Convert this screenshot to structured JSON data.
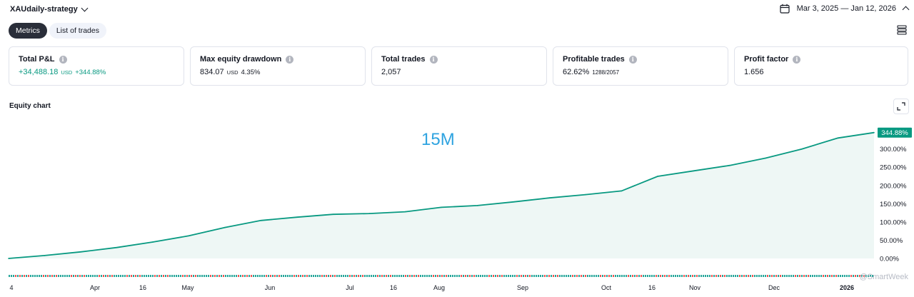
{
  "header": {
    "strategy_name": "XAUdaily-strategy",
    "date_range": "Mar 3, 2025 — Jan 12, 2026"
  },
  "tabs": [
    {
      "label": "Metrics",
      "active": true
    },
    {
      "label": "List of trades",
      "active": false
    }
  ],
  "metrics": {
    "total_pnl": {
      "title": "Total P&L",
      "value": "+34,488.18",
      "unit": "USD",
      "percent": "+344.88%"
    },
    "max_drawdown": {
      "title": "Max equity drawdown",
      "value": "834.07",
      "unit": "USD",
      "percent": "4.35%"
    },
    "total_trades": {
      "title": "Total trades",
      "value": "2,057"
    },
    "profitable_trades": {
      "title": "Profitable trades",
      "value": "62.62%",
      "detail": "1288/2057"
    },
    "profit_factor": {
      "title": "Profit factor",
      "value": "1.656"
    }
  },
  "equity_chart": {
    "title": "Equity chart",
    "overlay_text": "15M",
    "watermark": "@SmartWeek",
    "colors": {
      "line": "#089981",
      "fill": "#eef7f5",
      "badge": "#089981",
      "win": "#26a69a",
      "loss": "#ef5350"
    }
  },
  "chart_data": {
    "type": "area",
    "ylim": [
      0,
      360
    ],
    "y_ticks": [
      "344.88%",
      "300.00%",
      "250.00%",
      "200.00%",
      "150.00%",
      "100.00%",
      "50.00%",
      "0.00%"
    ],
    "x_ticks": [
      "4",
      "Apr",
      "16",
      "May",
      "Jun",
      "Jul",
      "16",
      "Aug",
      "Sep",
      "Oct",
      "16",
      "Nov",
      "Dec",
      "2026"
    ],
    "last_value_label": "344.88%",
    "series": [
      {
        "x": [
          "Mar 4",
          "Mar 18",
          "Apr 1",
          "Apr 15",
          "Apr 29",
          "May 13",
          "May 27",
          "Jun 10",
          "Jun 24",
          "Jul 8",
          "Jul 22",
          "Aug 5",
          "Aug 19",
          "Sep 2",
          "Sep 16",
          "Sep 30",
          "Oct 14",
          "Oct 21",
          "Oct 28",
          "Nov 4",
          "Nov 18",
          "Dec 2",
          "Dec 16",
          "Dec 30",
          "Jan 12"
        ],
        "values": [
          0,
          8,
          18,
          30,
          45,
          62,
          85,
          104,
          113,
          121,
          123,
          128,
          140,
          145,
          155,
          166,
          175,
          185,
          225,
          240,
          255,
          275,
          300,
          330,
          344.88
        ]
      }
    ]
  }
}
